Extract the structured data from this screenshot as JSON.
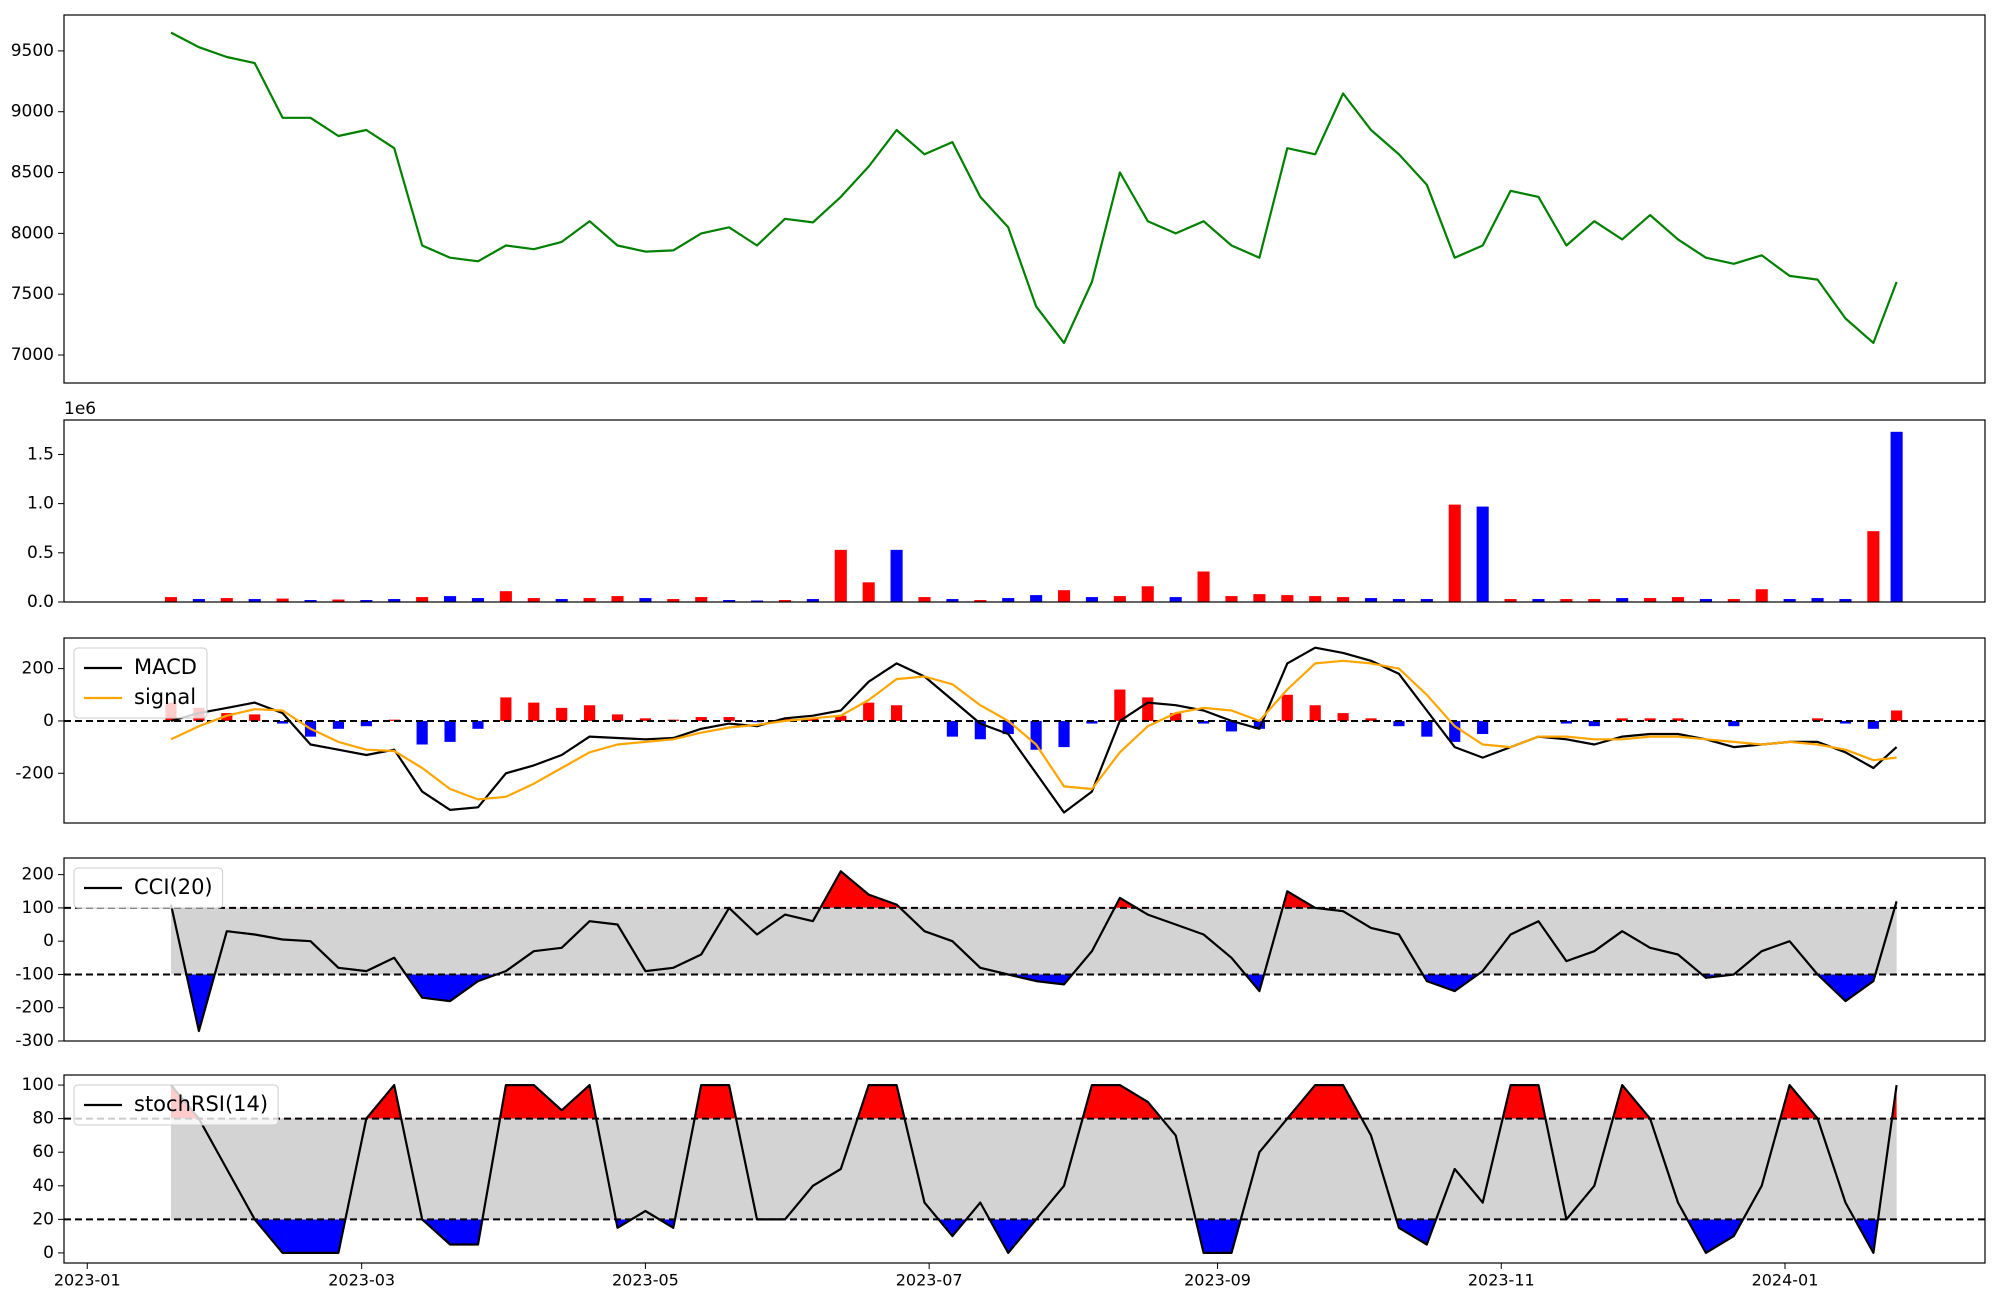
{
  "chart_data": [
    {
      "type": "line",
      "color": "green",
      "values": [
        9650,
        9530,
        9450,
        9400,
        8950,
        8950,
        8800,
        8850,
        8700,
        7900,
        7800,
        7770,
        7900,
        7870,
        7930,
        8100,
        7900,
        7850,
        7860,
        8000,
        8050,
        7900,
        8120,
        8090,
        8300,
        8550,
        8850,
        8650,
        8750,
        8300,
        8050,
        7400,
        7100,
        7600,
        8500,
        8100,
        8000,
        8100,
        7900,
        7800,
        8700,
        8650,
        9150,
        8850,
        8650,
        8400,
        7800,
        7900,
        8350,
        8300,
        7900,
        8100,
        7950,
        8150,
        7950,
        7800,
        7750,
        7820,
        7650,
        7620,
        7300,
        7100,
        7600
      ],
      "ylim": [
        6770,
        9795
      ],
      "yticks": [
        7000,
        7500,
        8000,
        8500,
        9000,
        9500
      ]
    },
    {
      "type": "bar",
      "offset_label": "1e6",
      "values": [
        50000,
        30000,
        40000,
        30000,
        35000,
        20000,
        25000,
        20000,
        30000,
        50000,
        60000,
        40000,
        110000,
        40000,
        30000,
        40000,
        60000,
        40000,
        30000,
        50000,
        20000,
        15000,
        20000,
        30000,
        530000,
        200000,
        530000,
        50000,
        30000,
        20000,
        40000,
        70000,
        120000,
        50000,
        60000,
        160000,
        50000,
        310000,
        60000,
        80000,
        70000,
        60000,
        50000,
        40000,
        30000,
        30000,
        990000,
        970000,
        30000,
        30000,
        30000,
        30000,
        40000,
        40000,
        50000,
        30000,
        30000,
        130000,
        30000,
        40000,
        30000,
        720000,
        1730000
      ],
      "colors": [
        "red",
        "blue",
        "red",
        "blue",
        "red",
        "blue",
        "red",
        "blue",
        "blue",
        "red",
        "blue",
        "blue",
        "red",
        "red",
        "blue",
        "red",
        "red",
        "blue",
        "red",
        "red",
        "blue",
        "blue",
        "red",
        "blue",
        "red",
        "red",
        "blue",
        "red",
        "blue",
        "red",
        "blue",
        "blue",
        "red",
        "blue",
        "red",
        "red",
        "blue",
        "red",
        "red",
        "red",
        "red",
        "red",
        "red",
        "blue",
        "blue",
        "blue",
        "red",
        "blue",
        "red",
        "blue",
        "red",
        "red",
        "blue",
        "red",
        "red",
        "blue",
        "red",
        "red",
        "blue",
        "blue",
        "blue",
        "red",
        "blue"
      ],
      "ylim": [
        0,
        1850000
      ],
      "yticks": [
        {
          "value": 0,
          "label": "0.0"
        },
        {
          "value": 500000,
          "label": "0.5"
        },
        {
          "value": 1000000,
          "label": "1.0"
        },
        {
          "value": 1500000,
          "label": "1.5"
        }
      ]
    },
    {
      "type": "line",
      "series": [
        {
          "name": "MACD",
          "color": "black",
          "values": [
            0,
            30,
            50,
            70,
            30,
            -90,
            -110,
            -130,
            -110,
            -270,
            -340,
            -330,
            -200,
            -170,
            -130,
            -60,
            -65,
            -70,
            -65,
            -30,
            -10,
            -20,
            10,
            20,
            40,
            150,
            220,
            170,
            80,
            -10,
            -50,
            -200,
            -350,
            -270,
            0,
            70,
            60,
            40,
            0,
            -30,
            220,
            280,
            260,
            230,
            180,
            40,
            -100,
            -140,
            -100,
            -60,
            -70,
            -90,
            -60,
            -50,
            -50,
            -70,
            -100,
            -90,
            -80,
            -80,
            -120,
            -180,
            -100
          ]
        },
        {
          "name": "signal",
          "color": "orange",
          "values": [
            -70,
            -20,
            20,
            45,
            40,
            -30,
            -80,
            -110,
            -115,
            -180,
            -260,
            -300,
            -290,
            -240,
            -180,
            -120,
            -90,
            -80,
            -70,
            -45,
            -25,
            -15,
            0,
            10,
            20,
            80,
            160,
            170,
            140,
            60,
            0,
            -90,
            -250,
            -260,
            -120,
            -20,
            30,
            50,
            40,
            0,
            120,
            220,
            230,
            220,
            200,
            100,
            -20,
            -90,
            -100,
            -60,
            -60,
            -70,
            -70,
            -60,
            -60,
            -70,
            -80,
            -90,
            -80,
            -90,
            -110,
            -150,
            -140
          ]
        }
      ],
      "histogram": {
        "up_color": "red",
        "down_color": "blue",
        "values": [
          70,
          50,
          30,
          25,
          -10,
          -60,
          -30,
          -20,
          5,
          -90,
          -80,
          -30,
          90,
          70,
          50,
          60,
          25,
          10,
          5,
          15,
          15,
          -5,
          10,
          10,
          20,
          70,
          60,
          0,
          -60,
          -70,
          -50,
          -110,
          -100,
          -10,
          120,
          90,
          30,
          -10,
          -40,
          -30,
          100,
          60,
          30,
          10,
          -20,
          -60,
          -80,
          -50,
          0,
          0,
          -10,
          -20,
          10,
          10,
          10,
          0,
          -20,
          0,
          0,
          10,
          -10,
          -30,
          40
        ]
      },
      "hlines": [
        0
      ],
      "ylim": [
        -390,
        317
      ],
      "yticks": [
        -200,
        0,
        200
      ],
      "legend": "upper left"
    },
    {
      "type": "line",
      "series": [
        {
          "name": "CCI(20)",
          "color": "black",
          "values": [
            110,
            -270,
            30,
            20,
            5,
            0,
            -80,
            -90,
            -50,
            -170,
            -180,
            -120,
            -90,
            -30,
            -20,
            60,
            50,
            -90,
            -80,
            -40,
            100,
            20,
            80,
            60,
            210,
            140,
            110,
            30,
            0,
            -80,
            -100,
            -120,
            -130,
            -30,
            130,
            80,
            50,
            20,
            -50,
            -150,
            150,
            100,
            90,
            40,
            20,
            -120,
            -150,
            -90,
            20,
            60,
            -60,
            -30,
            30,
            -20,
            -40,
            -110,
            -100,
            -30,
            0,
            -100,
            -180,
            -120,
            120
          ]
        }
      ],
      "hlines": [
        100,
        -100
      ],
      "band_color": "lightgray",
      "above_color": "red",
      "below_color": "blue",
      "ylim": [
        -300,
        250
      ],
      "yticks": [
        -300,
        -200,
        -100,
        0,
        100,
        200
      ],
      "legend": "upper left"
    },
    {
      "type": "line",
      "series": [
        {
          "name": "stochRSI(14)",
          "color": "black",
          "values": [
            100,
            80,
            50,
            20,
            0,
            0,
            0,
            80,
            100,
            20,
            5,
            5,
            100,
            100,
            85,
            100,
            15,
            25,
            15,
            100,
            100,
            20,
            20,
            40,
            50,
            100,
            100,
            30,
            10,
            30,
            0,
            20,
            40,
            100,
            100,
            90,
            70,
            0,
            0,
            60,
            80,
            100,
            100,
            70,
            15,
            5,
            50,
            30,
            100,
            100,
            20,
            40,
            100,
            80,
            30,
            0,
            10,
            40,
            100,
            80,
            30,
            0,
            100
          ]
        }
      ],
      "hlines": [
        80,
        20
      ],
      "band_color": "lightgray",
      "above_color": "red",
      "below_color": "blue",
      "ylim": [
        -6,
        106
      ],
      "yticks": [
        0,
        20,
        40,
        60,
        80,
        100
      ],
      "legend": "upper left",
      "x": [
        18,
        24,
        30,
        36,
        42,
        48,
        54,
        60,
        66,
        72,
        78,
        84,
        90,
        96,
        102,
        108,
        114,
        120,
        126,
        132,
        138,
        144,
        150,
        156,
        162,
        168,
        174,
        180,
        186,
        192,
        198,
        204,
        210,
        216,
        222,
        228,
        234,
        240,
        246,
        252,
        258,
        264,
        270,
        276,
        282,
        288,
        294,
        300,
        306,
        312,
        318,
        324,
        330,
        336,
        342,
        348,
        354,
        360,
        366,
        372,
        378,
        384,
        389
      ],
      "xlim": [
        -5,
        408
      ],
      "xticks": [
        {
          "value": 0,
          "label": "2023-01"
        },
        {
          "value": 59,
          "label": "2023-03"
        },
        {
          "value": 120,
          "label": "2023-05"
        },
        {
          "value": 181,
          "label": "2023-07"
        },
        {
          "value": 243,
          "label": "2023-09"
        },
        {
          "value": 304,
          "label": "2023-11"
        },
        {
          "value": 365,
          "label": "2024-01"
        }
      ]
    }
  ]
}
